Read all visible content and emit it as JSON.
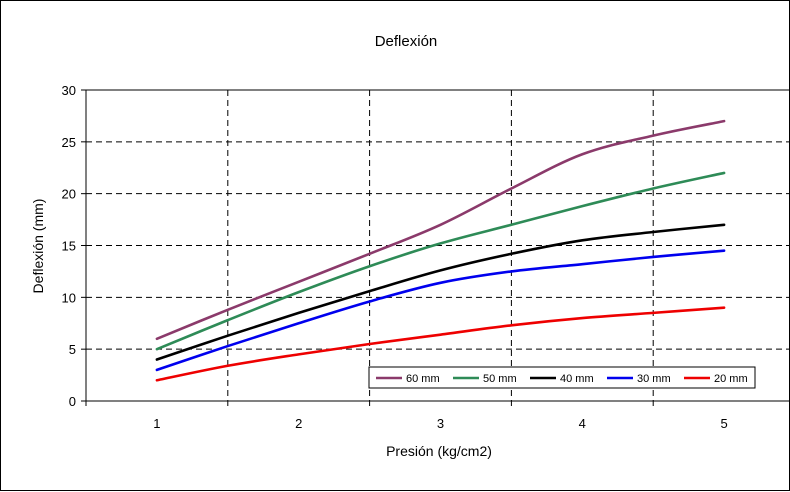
{
  "chart_data": {
    "type": "line",
    "title": "Deflexión",
    "xlabel": "Presión (kg/cm2)",
    "ylabel": "Deflexión (mm)",
    "x": [
      1,
      1.5,
      2,
      2.5,
      3,
      3.5,
      4,
      4.5,
      5
    ],
    "xticks": [
      "1",
      "2",
      "3",
      "4",
      "5"
    ],
    "yticks": [
      "0",
      "5",
      "10",
      "15",
      "20",
      "25",
      "30"
    ],
    "xlim": [
      0.5,
      5.5
    ],
    "ylim": [
      0,
      30
    ],
    "grid": "dashed-major",
    "legend_position": "bottom-right",
    "series": [
      {
        "name": "60 mm",
        "color": "#8B3A6B",
        "values": [
          6,
          8.8,
          11.5,
          14.2,
          17,
          20.5,
          23.8,
          25.6,
          27
        ]
      },
      {
        "name": "50 mm",
        "color": "#2E8B57",
        "values": [
          5,
          7.8,
          10.5,
          13,
          15.2,
          17,
          18.8,
          20.5,
          22
        ]
      },
      {
        "name": "40 mm",
        "color": "#000000",
        "values": [
          4,
          6.3,
          8.5,
          10.6,
          12.6,
          14.2,
          15.5,
          16.3,
          17
        ]
      },
      {
        "name": "30 mm",
        "color": "#0000EE",
        "values": [
          3,
          5.3,
          7.5,
          9.6,
          11.4,
          12.5,
          13.2,
          13.9,
          14.5
        ]
      },
      {
        "name": "20 mm",
        "color": "#EE0000",
        "values": [
          2,
          3.4,
          4.5,
          5.5,
          6.4,
          7.3,
          8.0,
          8.5,
          9
        ]
      }
    ]
  }
}
